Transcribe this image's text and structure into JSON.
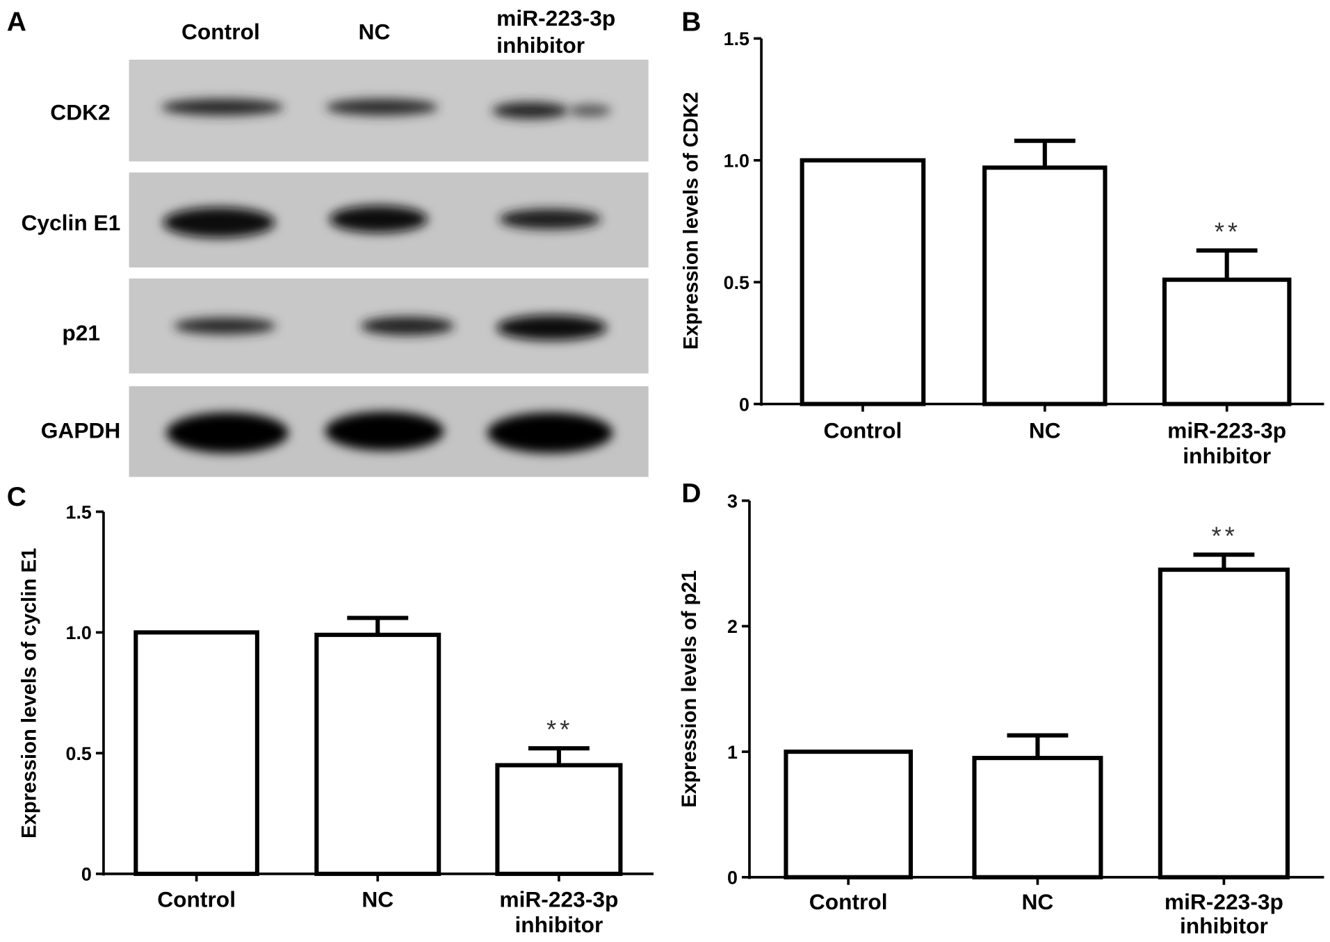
{
  "panel_a": {
    "letter": "A",
    "lanes": [
      "Control",
      "NC",
      "miR-223-3p",
      "inhibitor"
    ],
    "proteins": [
      "CDK2",
      "Cyclin E1",
      "p21",
      "GAPDH"
    ]
  },
  "chart_data": [
    {
      "panel": "B",
      "type": "bar",
      "categories": [
        "Control",
        "NC",
        "miR-223-3p inhibitor"
      ],
      "category_lines": [
        [
          "Control"
        ],
        [
          "NC"
        ],
        [
          "miR-223-3p",
          "inhibitor"
        ]
      ],
      "values": [
        1.0,
        0.97,
        0.51
      ],
      "errors": [
        0,
        0.11,
        0.12
      ],
      "significance": [
        "",
        "",
        "**"
      ],
      "ylabel": "Expression levels of CDK2",
      "ylim": [
        0,
        1.5
      ],
      "yticks": [
        "0",
        "0.5",
        "1.0",
        "1.5"
      ],
      "ytick_values": [
        0,
        0.5,
        1.0,
        1.5
      ]
    },
    {
      "panel": "C",
      "type": "bar",
      "categories": [
        "Control",
        "NC",
        "miR-223-3p inhibitor"
      ],
      "category_lines": [
        [
          "Control"
        ],
        [
          "NC"
        ],
        [
          "miR-223-3p",
          "inhibitor"
        ]
      ],
      "values": [
        1.0,
        0.99,
        0.45
      ],
      "errors": [
        0,
        0.07,
        0.07
      ],
      "significance": [
        "",
        "",
        "**"
      ],
      "ylabel": "Expression levels of cyclin E1",
      "ylim": [
        0,
        1.5
      ],
      "yticks": [
        "0",
        "0.5",
        "1.0",
        "1.5"
      ],
      "ytick_values": [
        0,
        0.5,
        1.0,
        1.5
      ]
    },
    {
      "panel": "D",
      "type": "bar",
      "categories": [
        "Control",
        "NC",
        "miR-223-3p inhibitor"
      ],
      "category_lines": [
        [
          "Control"
        ],
        [
          "NC"
        ],
        [
          "miR-223-3p",
          "inhibitor"
        ]
      ],
      "values": [
        1.0,
        0.95,
        2.45
      ],
      "errors": [
        0,
        0.18,
        0.12
      ],
      "significance": [
        "",
        "",
        "**"
      ],
      "ylabel": "Expression levels of p21",
      "ylim": [
        0,
        3
      ],
      "yticks": [
        "0",
        "1",
        "2",
        "3"
      ],
      "ytick_values": [
        0,
        1,
        2,
        3
      ]
    }
  ]
}
